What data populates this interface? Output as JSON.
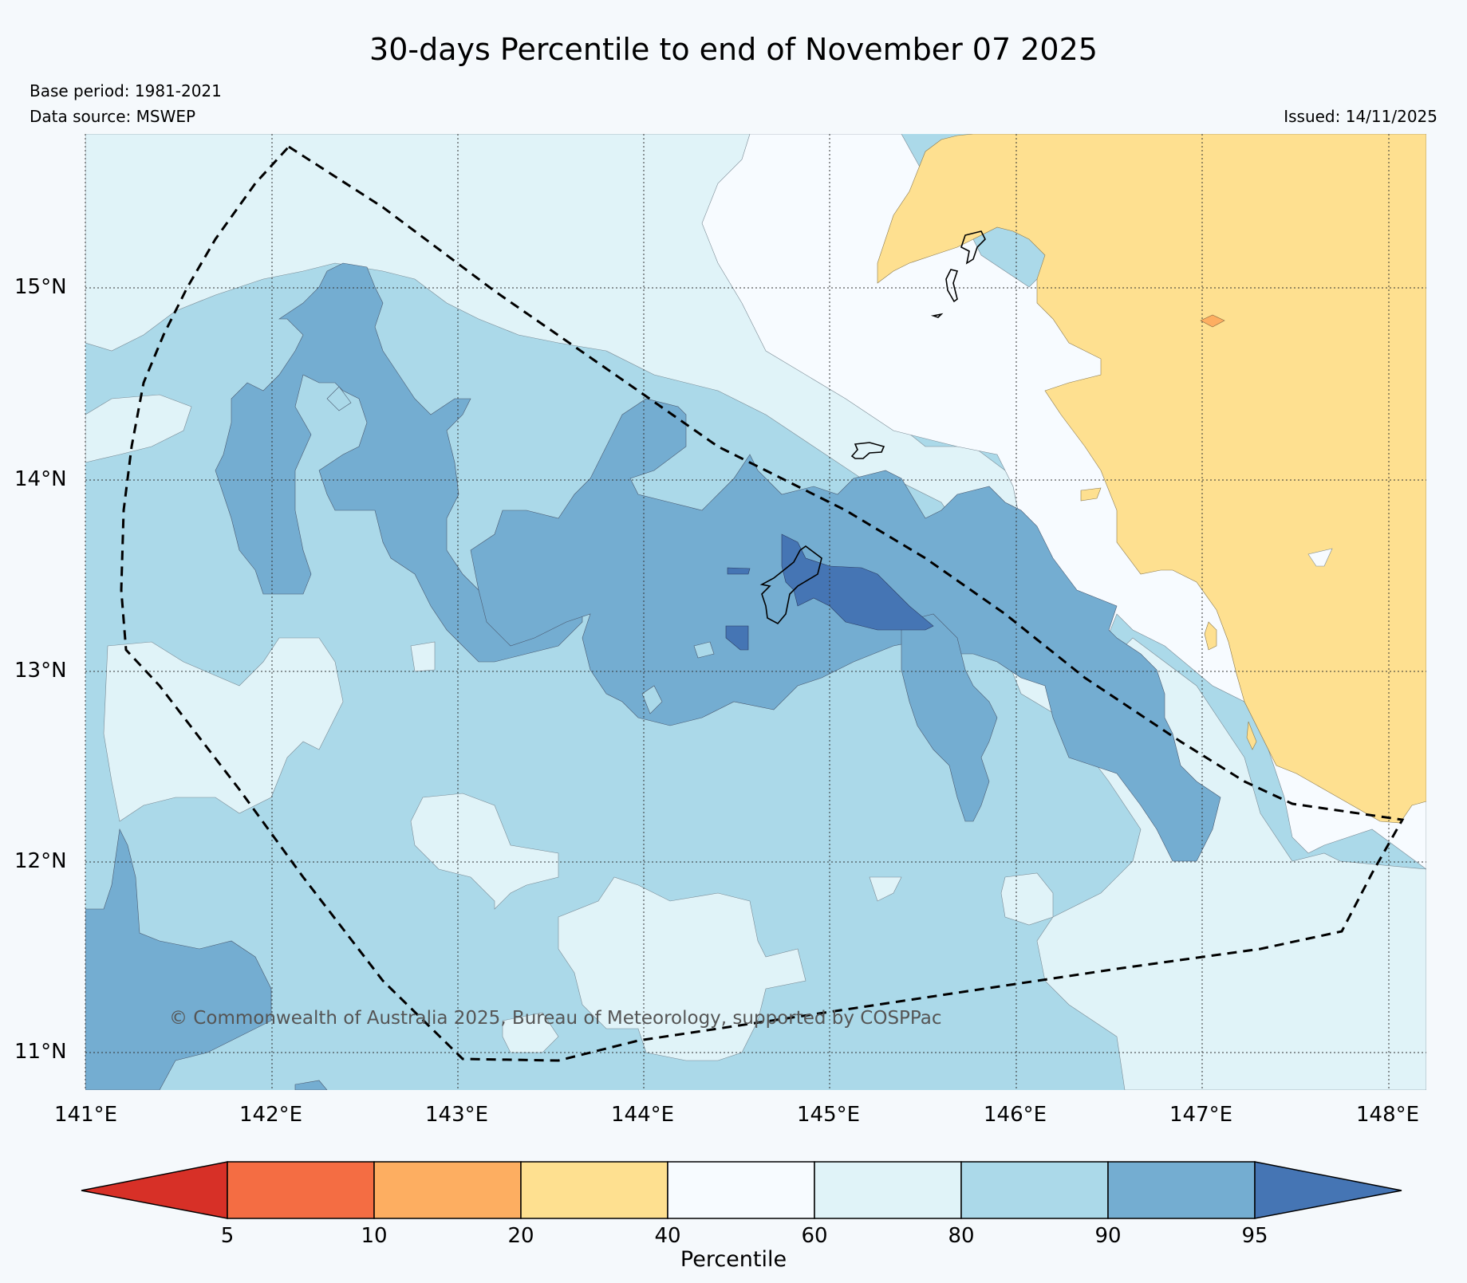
{
  "title": "30-days Percentile to end of November 07 2025",
  "base_period": "Base period: 1981-2021",
  "data_source": "Data source: MSWEP",
  "issued": "Issued: 14/11/2025",
  "copyright": "© Commonwealth of Australia 2025, Bureau of Meteorology, supported by COSPPac",
  "lat_labels": [
    "15°N",
    "14°N",
    "13°N",
    "12°N",
    "11°N"
  ],
  "lon_labels": [
    "141°E",
    "142°E",
    "143°E",
    "144°E",
    "145°E",
    "146°E",
    "147°E",
    "148°E"
  ],
  "colorbar": {
    "label": "Percentile",
    "ticks": [
      "5",
      "10",
      "20",
      "40",
      "60",
      "80",
      "90",
      "95"
    ],
    "colors": [
      "#d73027",
      "#f46d43",
      "#fdae61",
      "#fee090",
      "#f7fbff",
      "#e0f3f8",
      "#abd9e9",
      "#74add1",
      "#4575b4"
    ]
  },
  "map_colors": {
    "p20_40": "#fee090",
    "p10_20": "#fdae61",
    "p40_60": "#f7fbff",
    "p60_80": "#e0f3f8",
    "p80_90": "#abd9e9",
    "p90_95": "#74add1",
    "p95_up": "#4575b4"
  }
}
